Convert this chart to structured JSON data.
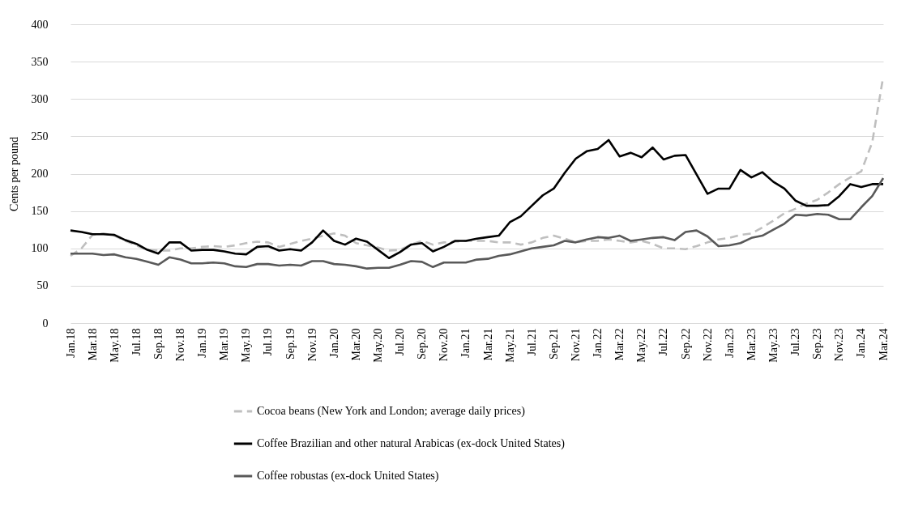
{
  "chart_data": {
    "type": "line",
    "ylabel": "Cents per pound",
    "categories": [
      "Jan.18",
      null,
      "Mar.18",
      null,
      "May.18",
      null,
      "Jul.18",
      null,
      "Sep.18",
      null,
      "Nov.18",
      null,
      "Jan.19",
      null,
      "Mar.19",
      null,
      "May.19",
      null,
      "Jul.19",
      null,
      "Sep.19",
      null,
      "Nov.19",
      null,
      "Jan.20",
      null,
      "Mar.20",
      null,
      "May.20",
      null,
      "Jul.20",
      null,
      "Sep.20",
      null,
      "Nov.20",
      null,
      "Jan.21",
      null,
      "Mar.21",
      null,
      "May.21",
      null,
      "Jul.21",
      null,
      "Sep.21",
      null,
      "Nov.21",
      null,
      "Jan.22",
      null,
      "Mar.22",
      null,
      "May.22",
      null,
      "Jul.22",
      null,
      "Sep.22",
      null,
      "Nov.22",
      null,
      "Jan.23",
      null,
      "Mar.23",
      null,
      "May.23",
      null,
      "Jul.23",
      null,
      "Sep.23",
      null,
      "Nov.23",
      null,
      "Jan.24",
      null,
      "Mar.24"
    ],
    "series": [
      {
        "name": "Cocoa beans (New York and London; average daily prices)",
        "color": "#bfbfbf",
        "line_style": "dashed",
        "values": [
          90,
          100,
          118,
          120,
          117,
          110,
          104,
          98,
          97,
          97,
          100,
          100,
          102,
          103,
          102,
          104,
          107,
          109,
          108,
          102,
          106,
          110,
          113,
          117,
          120,
          117,
          107,
          104,
          101,
          97,
          98,
          105,
          110,
          105,
          108,
          109,
          110,
          110,
          110,
          108,
          108,
          105,
          108,
          114,
          117,
          113,
          108,
          110,
          110,
          112,
          110,
          108,
          110,
          106,
          100,
          100,
          99,
          103,
          108,
          112,
          114,
          118,
          120,
          128,
          137,
          147,
          153,
          160,
          165,
          175,
          186,
          195,
          203,
          242,
          330
        ]
      },
      {
        "name": "Coffee Brazilian and other natural Arabicas (ex-dock United States)",
        "color": "#000000",
        "line_style": "solid",
        "values": [
          124,
          122,
          119,
          119,
          118,
          111,
          106,
          98,
          93,
          108,
          108,
          97,
          98,
          98,
          96,
          93,
          92,
          102,
          103,
          97,
          99,
          97,
          108,
          124,
          110,
          105,
          113,
          109,
          98,
          87,
          95,
          105,
          107,
          96,
          102,
          110,
          110,
          113,
          115,
          117,
          135,
          143,
          157,
          171,
          180,
          201,
          220,
          230,
          233,
          245,
          223,
          228,
          222,
          235,
          219,
          224,
          225,
          199,
          173,
          180,
          180,
          205,
          195,
          202,
          189,
          180,
          164,
          157,
          157,
          158,
          170,
          186,
          182,
          186,
          186
        ]
      },
      {
        "name": "Coffee robustas (ex-dock United States)",
        "color": "#595959",
        "line_style": "solid",
        "values": [
          93,
          93,
          93,
          91,
          92,
          88,
          86,
          82,
          78,
          88,
          85,
          80,
          80,
          81,
          80,
          76,
          75,
          79,
          79,
          77,
          78,
          77,
          83,
          83,
          79,
          78,
          76,
          73,
          74,
          74,
          78,
          83,
          82,
          75,
          81,
          81,
          81,
          85,
          86,
          90,
          92,
          96,
          100,
          102,
          104,
          110,
          108,
          112,
          115,
          114,
          117,
          110,
          112,
          114,
          115,
          111,
          122,
          124,
          116,
          103,
          104,
          107,
          114,
          117,
          125,
          133,
          145,
          144,
          146,
          145,
          139,
          139,
          155,
          170,
          194
        ]
      }
    ],
    "ylim": [
      0,
      400
    ],
    "yticks": [
      0,
      50,
      100,
      150,
      200,
      250,
      300,
      350,
      400
    ],
    "grid": "y",
    "legend": "bottom",
    "marker": "none"
  }
}
